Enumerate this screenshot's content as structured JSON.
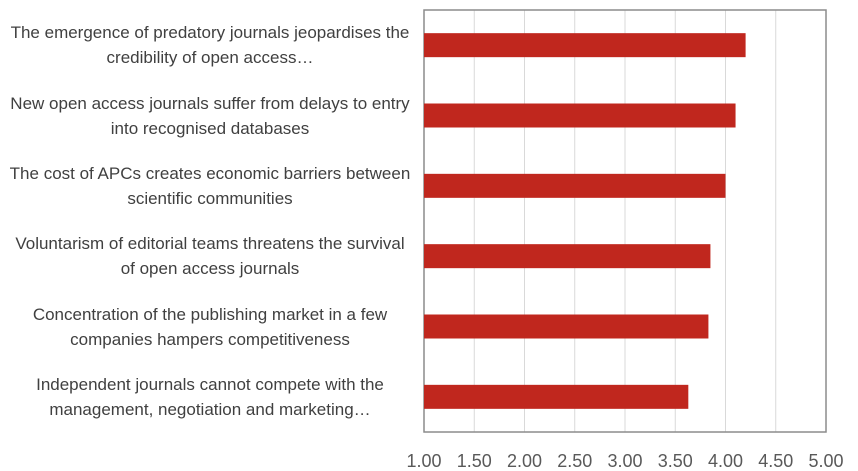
{
  "chart_data": {
    "type": "bar",
    "orientation": "horizontal",
    "categories": [
      "The emergence of predatory journals jeopardises the credibility of open access…",
      "New open access journals suffer from delays to entry into recognised databases",
      "The cost of APCs creates economic barriers between scientific communities",
      "Voluntarism of editorial teams threatens the survival of open access journals",
      "Concentration of the publishing market in a few companies hampers competitiveness",
      "Independent journals cannot compete with the management, negotiation and marketing…"
    ],
    "values": [
      4.2,
      4.1,
      4.0,
      3.85,
      3.83,
      3.63
    ],
    "color": "#c0271e",
    "xlim": [
      1,
      5
    ],
    "xticks": [
      {
        "value": 1,
        "label": "1.00"
      },
      {
        "value": 1.5,
        "label": "1.50"
      },
      {
        "value": 2,
        "label": "2.00"
      },
      {
        "value": 2.5,
        "label": "2.50"
      },
      {
        "value": 3,
        "label": "3.00"
      },
      {
        "value": 3.5,
        "label": "3.50"
      },
      {
        "value": 4,
        "label": "4.00"
      },
      {
        "value": 4.5,
        "label": "4.50"
      },
      {
        "value": 5,
        "label": "5.00"
      }
    ],
    "grid": true
  }
}
